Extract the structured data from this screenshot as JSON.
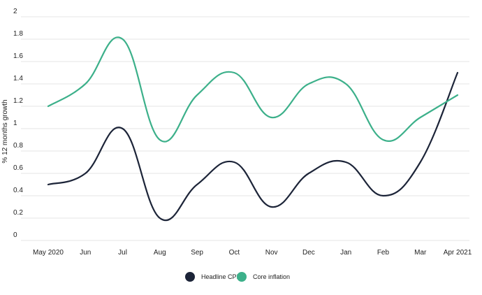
{
  "chart_data": {
    "type": "line",
    "title": "",
    "xlabel": "",
    "ylabel": "% 12 months growth",
    "ylim": [
      0,
      2
    ],
    "yticks": [
      "0",
      "0.2",
      "0.4",
      "0.6",
      "0.8",
      "1",
      "1.2",
      "1.4",
      "1.6",
      "1.8",
      "2"
    ],
    "grid": true,
    "legend_position": "bottom-center",
    "categories": [
      "May 2020",
      "Jun",
      "Jul",
      "Aug",
      "Sep",
      "Oct",
      "Nov",
      "Dec",
      "Jan",
      "Feb",
      "Mar",
      "Apr 2021"
    ],
    "series": [
      {
        "name": "Headline CPI",
        "color": "#1c2438",
        "values": [
          0.5,
          0.6,
          1.0,
          0.2,
          0.5,
          0.7,
          0.3,
          0.6,
          0.7,
          0.4,
          0.7,
          1.5
        ]
      },
      {
        "name": "Core inflation",
        "color": "#3cb08a",
        "values": [
          1.2,
          1.4,
          1.8,
          0.9,
          1.3,
          1.5,
          1.1,
          1.4,
          1.4,
          0.9,
          1.1,
          1.3
        ]
      }
    ]
  }
}
